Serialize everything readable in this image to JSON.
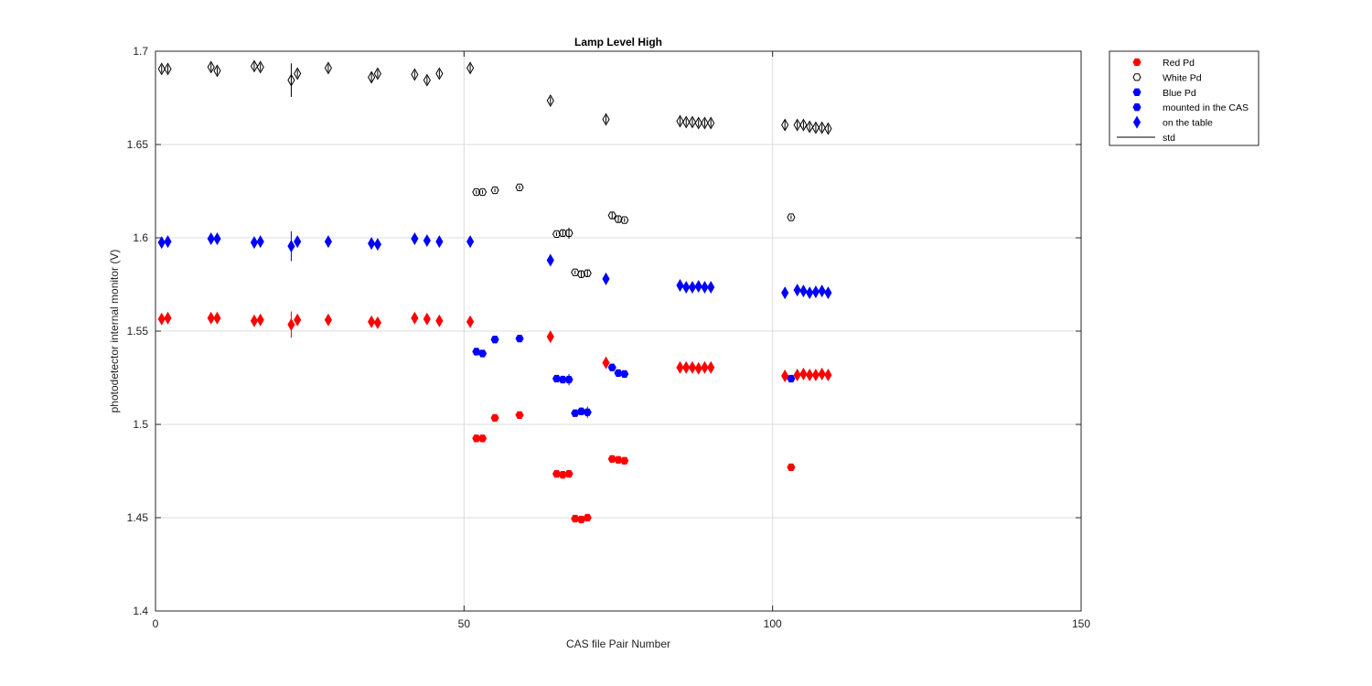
{
  "chart_data": {
    "type": "scatter",
    "title": "Lamp Level High",
    "xlabel": "CAS file Pair Number",
    "ylabel": "photodetector internal monitor (V)",
    "xlim": [
      0,
      150
    ],
    "ylim": [
      1.4,
      1.7
    ],
    "x_ticks": [
      0,
      50,
      100,
      150
    ],
    "y_ticks": [
      1.4,
      1.45,
      1.5,
      1.55,
      1.6,
      1.65,
      1.7
    ],
    "x_tick_labels": [
      "0",
      "50",
      "100",
      "150"
    ],
    "y_tick_labels": [
      "1.4",
      "1.45",
      "1.5",
      "1.55",
      "1.6",
      "1.65",
      "1.7"
    ],
    "grid": true,
    "legend_position": "outside-top-right",
    "legend": [
      {
        "label": "Red Pd",
        "color": "#ff0000",
        "marker": "hexagon-filled"
      },
      {
        "label": "White Pd",
        "color": "#000000",
        "marker": "hexagon-open"
      },
      {
        "label": "Blue Pd",
        "color": "#0000ff",
        "marker": "hexagon-filled"
      },
      {
        "label": "mounted in the CAS",
        "color": "#0000ff",
        "marker": "hexagon-filled"
      },
      {
        "label": "on the table",
        "color": "#0000ff",
        "marker": "diamond-filled"
      },
      {
        "label": "std",
        "color": "#000000",
        "marker": "line"
      }
    ],
    "series": [
      {
        "color": "#000000",
        "fill": "none",
        "marker": "diamond",
        "points": [
          [
            1,
            1.6905,
            0.002
          ],
          [
            2,
            1.6905,
            0.002
          ],
          [
            9,
            1.6915,
            0.002
          ],
          [
            10,
            1.6895,
            0.002
          ],
          [
            16,
            1.692,
            0.002
          ],
          [
            17,
            1.6915,
            0.002
          ],
          [
            22,
            1.6845,
            0.009
          ],
          [
            23,
            1.688,
            0.002
          ],
          [
            28,
            1.691,
            0.002
          ],
          [
            35,
            1.686,
            0.003
          ],
          [
            36,
            1.688,
            0.002
          ],
          [
            42,
            1.6875,
            0.002
          ],
          [
            44,
            1.6845,
            0.002
          ],
          [
            46,
            1.688,
            0.002
          ],
          [
            51,
            1.691,
            0.002
          ],
          [
            64,
            1.6735,
            0.002
          ],
          [
            73,
            1.6635,
            0.002
          ],
          [
            85,
            1.6625,
            0.002
          ],
          [
            86,
            1.662,
            0.002
          ],
          [
            87,
            1.662,
            0.002
          ],
          [
            88,
            1.6615,
            0.002
          ],
          [
            89,
            1.6615,
            0.002
          ],
          [
            90,
            1.6615,
            0.002
          ],
          [
            102,
            1.6605,
            0.003
          ],
          [
            104,
            1.6605,
            0.002
          ],
          [
            105,
            1.6605,
            0.002
          ],
          [
            106,
            1.6595,
            0.002
          ],
          [
            107,
            1.659,
            0.002
          ],
          [
            108,
            1.659,
            0.002
          ],
          [
            109,
            1.6585,
            0.002
          ]
        ]
      },
      {
        "color": "#000000",
        "fill": "none",
        "marker": "hexagon",
        "points": [
          [
            52,
            1.6245,
            0.001
          ],
          [
            53,
            1.6245,
            0.001
          ],
          [
            55,
            1.6255,
            0.001
          ],
          [
            59,
            1.627,
            0.001
          ],
          [
            65,
            1.602,
            0.001
          ],
          [
            66,
            1.6025,
            0.002
          ],
          [
            67,
            1.6025,
            0.003
          ],
          [
            68,
            1.5815,
            0.001
          ],
          [
            69,
            1.5805,
            0.002
          ],
          [
            70,
            1.581,
            0.002
          ],
          [
            74,
            1.612,
            0.002
          ],
          [
            75,
            1.61,
            0.002
          ],
          [
            76,
            1.6095,
            0.001
          ],
          [
            103,
            1.611,
            0.001
          ]
        ]
      },
      {
        "color": "#0000ff",
        "fill": "#0000ff",
        "marker": "diamond",
        "points": [
          [
            1,
            1.5975,
            0.002
          ],
          [
            2,
            1.598,
            0.002
          ],
          [
            9,
            1.5995,
            0.002
          ],
          [
            10,
            1.5995,
            0.002
          ],
          [
            16,
            1.5975,
            0.002
          ],
          [
            17,
            1.598,
            0.002
          ],
          [
            22,
            1.5955,
            0.008
          ],
          [
            23,
            1.598,
            0.002
          ],
          [
            28,
            1.598,
            0.002
          ],
          [
            35,
            1.597,
            0.003
          ],
          [
            36,
            1.5965,
            0.002
          ],
          [
            42,
            1.5995,
            0.002
          ],
          [
            44,
            1.5985,
            0.002
          ],
          [
            46,
            1.598,
            0.002
          ],
          [
            51,
            1.598,
            0.002
          ],
          [
            64,
            1.588,
            0.002
          ],
          [
            73,
            1.578,
            0.002
          ],
          [
            85,
            1.5745,
            0.002
          ],
          [
            86,
            1.5735,
            0.002
          ],
          [
            87,
            1.5735,
            0.002
          ],
          [
            88,
            1.574,
            0.002
          ],
          [
            89,
            1.5735,
            0.002
          ],
          [
            90,
            1.5735,
            0.002
          ],
          [
            102,
            1.5705,
            0.003
          ],
          [
            104,
            1.572,
            0.002
          ],
          [
            105,
            1.5715,
            0.002
          ],
          [
            106,
            1.5705,
            0.002
          ],
          [
            107,
            1.571,
            0.002
          ],
          [
            108,
            1.5715,
            0.002
          ],
          [
            109,
            1.5705,
            0.002
          ]
        ]
      },
      {
        "color": "#0000ff",
        "fill": "#0000ff",
        "marker": "hexagon",
        "points": [
          [
            52,
            1.539,
            0.001
          ],
          [
            53,
            1.538,
            0.001
          ],
          [
            55,
            1.5455,
            0.001
          ],
          [
            59,
            1.546,
            0.001
          ],
          [
            65,
            1.5245,
            0.001
          ],
          [
            66,
            1.524,
            0.002
          ],
          [
            67,
            1.524,
            0.003
          ],
          [
            68,
            1.506,
            0.001
          ],
          [
            69,
            1.507,
            0.002
          ],
          [
            70,
            1.5065,
            0.003
          ],
          [
            74,
            1.5305,
            0.002
          ],
          [
            75,
            1.5275,
            0.002
          ],
          [
            76,
            1.527,
            0.001
          ],
          [
            103,
            1.5245,
            0.001
          ]
        ]
      },
      {
        "color": "#ff0000",
        "fill": "#ff0000",
        "marker": "diamond",
        "points": [
          [
            1,
            1.5565,
            0.002
          ],
          [
            2,
            1.557,
            0.002
          ],
          [
            9,
            1.557,
            0.002
          ],
          [
            10,
            1.557,
            0.002
          ],
          [
            16,
            1.5555,
            0.002
          ],
          [
            17,
            1.556,
            0.002
          ],
          [
            22,
            1.5535,
            0.007
          ],
          [
            23,
            1.556,
            0.002
          ],
          [
            28,
            1.556,
            0.002
          ],
          [
            35,
            1.555,
            0.002
          ],
          [
            36,
            1.5545,
            0.002
          ],
          [
            42,
            1.557,
            0.002
          ],
          [
            44,
            1.5565,
            0.002
          ],
          [
            46,
            1.5555,
            0.002
          ],
          [
            51,
            1.555,
            0.002
          ],
          [
            64,
            1.547,
            0.002
          ],
          [
            73,
            1.533,
            0.002
          ],
          [
            85,
            1.5305,
            0.002
          ],
          [
            86,
            1.5305,
            0.002
          ],
          [
            87,
            1.5305,
            0.002
          ],
          [
            88,
            1.53,
            0.002
          ],
          [
            89,
            1.5305,
            0.002
          ],
          [
            90,
            1.5305,
            0.002
          ],
          [
            102,
            1.526,
            0.002
          ],
          [
            104,
            1.5265,
            0.002
          ],
          [
            105,
            1.527,
            0.002
          ],
          [
            106,
            1.5265,
            0.002
          ],
          [
            107,
            1.5265,
            0.002
          ],
          [
            108,
            1.527,
            0.002
          ],
          [
            109,
            1.5265,
            0.002
          ]
        ]
      },
      {
        "color": "#ff0000",
        "fill": "#ff0000",
        "marker": "hexagon",
        "points": [
          [
            52,
            1.4925,
            0.001
          ],
          [
            53,
            1.4925,
            0.001
          ],
          [
            55,
            1.5035,
            0.001
          ],
          [
            59,
            1.505,
            0.001
          ],
          [
            65,
            1.4735,
            0.001
          ],
          [
            66,
            1.473,
            0.001
          ],
          [
            67,
            1.4735,
            0.001
          ],
          [
            68,
            1.4495,
            0.001
          ],
          [
            69,
            1.449,
            0.001
          ],
          [
            70,
            1.45,
            0.001
          ],
          [
            74,
            1.4815,
            0.001
          ],
          [
            75,
            1.481,
            0.001
          ],
          [
            76,
            1.4805,
            0.001
          ],
          [
            103,
            1.477,
            0.001
          ]
        ]
      }
    ]
  }
}
